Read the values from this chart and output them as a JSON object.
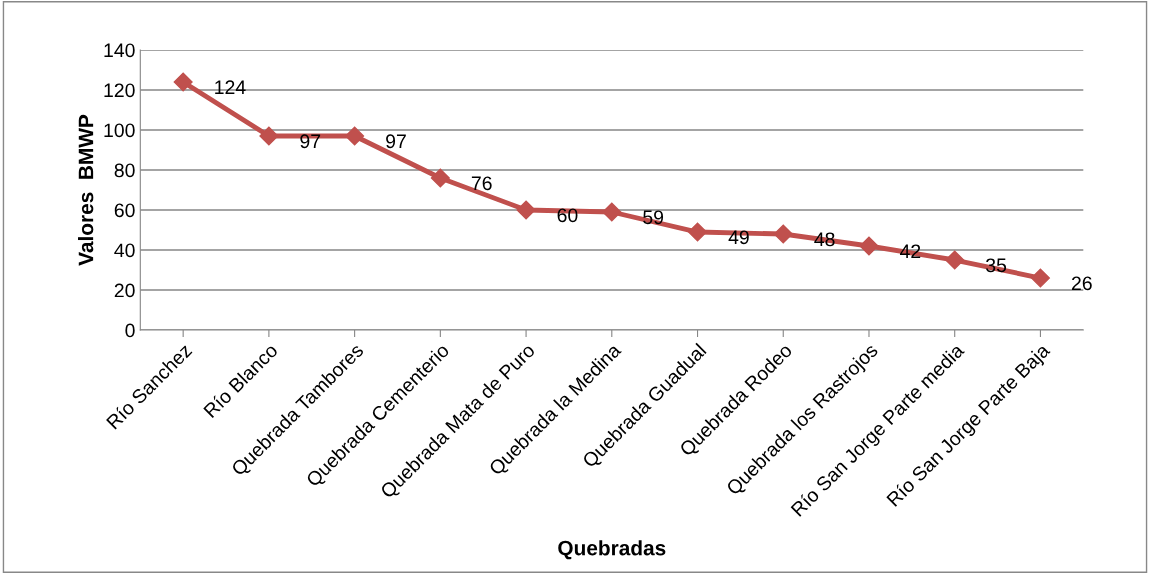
{
  "chart_data": {
    "type": "line",
    "xlabel": "Quebradas",
    "ylabel": "Valores  BMWP",
    "categories": [
      "Río Sanchez",
      "Río Blanco",
      "Quebrada Tambores",
      "Quebrada Cementerio",
      "Quebrada Mata de Puro",
      "Quebrada la Medina",
      "Quebrada Guadual",
      "Quebrada Rodeo",
      "Quebrada los Rastrojos",
      "Río San Jorge Parte media",
      "Río San Jorge Parte Baja"
    ],
    "series": [
      {
        "color": "#c0504d",
        "values": [
          124,
          97,
          97,
          76,
          60,
          59,
          49,
          48,
          42,
          35,
          26
        ]
      }
    ],
    "ylim": [
      0,
      140
    ],
    "yticks": [
      0,
      20,
      40,
      60,
      80,
      100,
      120,
      140
    ],
    "grid": "y",
    "legend": false,
    "marker": "diamond",
    "line_style": "solid",
    "data_labels": true
  }
}
